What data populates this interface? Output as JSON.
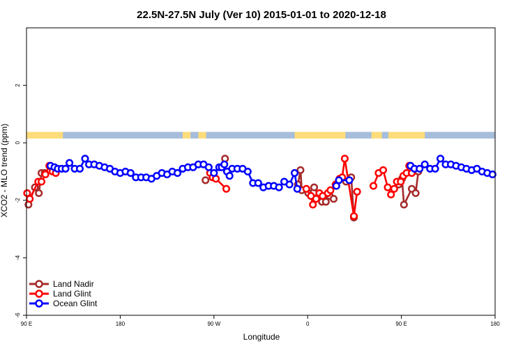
{
  "chart_data": {
    "type": "line",
    "title": "22.5N-27.5N July (Ver 10)   2015-01-01 to 2020-12-18",
    "xlabel": "Longitude",
    "ylabel": "XCO2 - MLO trend (ppm)",
    "xlim": [
      -90,
      270
    ],
    "ylim": [
      -6,
      4
    ],
    "x_ticks": [
      {
        "value": -90,
        "label": "90 E"
      },
      {
        "value": -18,
        "label": "180"
      },
      {
        "value": 54,
        "label": "90 W"
      },
      {
        "value": 126,
        "label": "0"
      },
      {
        "value": 198,
        "label": "90 E"
      },
      {
        "value": 270,
        "label": "180"
      }
    ],
    "y_ticks": [
      {
        "value": -6,
        "label": "-6"
      },
      {
        "value": -4,
        "label": "-4"
      },
      {
        "value": -2,
        "label": "-2"
      },
      {
        "value": 0,
        "label": "0"
      },
      {
        "value": 2,
        "label": "2"
      }
    ],
    "land_mask_band": {
      "y_range": [
        0.15,
        0.38
      ],
      "ocean_color": "#a6bddb",
      "land_color": "#fddc7a",
      "land_segments": [
        [
          -90,
          -62
        ],
        [
          30,
          36
        ],
        [
          42,
          48
        ],
        [
          116,
          155
        ],
        [
          175,
          183
        ],
        [
          188,
          216
        ]
      ]
    },
    "series": [
      {
        "name": "Land Nadir",
        "color": "#a52a2a",
        "points": [
          [
            -88.5,
            -2.15
          ],
          [
            -83.5,
            -1.55
          ],
          [
            -80.5,
            -1.75
          ],
          [
            -78.5,
            -1.05
          ],
          [
            -76,
            -1.05
          ],
          [
            47.5,
            -1.3
          ],
          [
            62.5,
            -0.55
          ],
          [
            118.5,
            -1.45
          ],
          [
            120.5,
            -0.95
          ],
          [
            121.5,
            -1.65
          ],
          [
            126.5,
            -1.75
          ],
          [
            131,
            -1.55
          ],
          [
            134.5,
            -1.85
          ],
          [
            137,
            -2.05
          ],
          [
            140,
            -2.05
          ],
          [
            143,
            -1.85
          ],
          [
            146,
            -1.95
          ],
          [
            155.5,
            -1.35
          ],
          [
            159.5,
            -1.2
          ],
          [
            161.5,
            -2.6
          ],
          [
            196,
            -1.45
          ],
          [
            198.5,
            -1.25
          ],
          [
            200,
            -2.15
          ],
          [
            206,
            -1.6
          ],
          [
            209,
            -1.75
          ],
          [
            211,
            -1.0
          ]
        ]
      },
      {
        "name": "Land Glint",
        "color": "#ff0000",
        "points": [
          [
            -89.5,
            -1.75
          ],
          [
            -87.5,
            -1.95
          ],
          [
            -81,
            -1.35
          ],
          [
            -78.5,
            -1.35
          ],
          [
            -75.5,
            -1.1
          ],
          [
            -72.5,
            -0.8
          ],
          [
            -70,
            -1.0
          ],
          [
            -67.5,
            -1.05
          ],
          [
            51,
            -1.05
          ],
          [
            53,
            -1.2
          ],
          [
            55.5,
            -1.25
          ],
          [
            63.5,
            -1.6
          ],
          [
            125,
            -1.6
          ],
          [
            128.5,
            -1.85
          ],
          [
            130,
            -2.15
          ],
          [
            132.5,
            -1.95
          ],
          [
            135,
            -1.75
          ],
          [
            137.5,
            -1.85
          ],
          [
            141.5,
            -1.75
          ],
          [
            143.5,
            -1.65
          ],
          [
            147.5,
            -1.45
          ],
          [
            150.5,
            -1.25
          ],
          [
            152.5,
            -1.2
          ],
          [
            154.5,
            -0.55
          ],
          [
            161.5,
            -2.55
          ],
          [
            164,
            -1.7
          ],
          [
            176.5,
            -1.5
          ],
          [
            180.5,
            -1.05
          ],
          [
            184,
            -0.95
          ],
          [
            187.5,
            -1.55
          ],
          [
            190,
            -1.8
          ],
          [
            192.5,
            -1.6
          ],
          [
            194.5,
            -1.35
          ],
          [
            197.5,
            -1.35
          ],
          [
            199.5,
            -1.15
          ],
          [
            202,
            -1.05
          ],
          [
            204,
            -0.8
          ],
          [
            206,
            -1.05
          ]
        ]
      },
      {
        "name": "Ocean Glint",
        "color": "#0000ff",
        "points": [
          [
            -71.5,
            -0.8
          ],
          [
            -68.5,
            -0.85
          ],
          [
            -66,
            -0.9
          ],
          [
            -63,
            -0.9
          ],
          [
            -60,
            -0.9
          ],
          [
            -57,
            -0.7
          ],
          [
            -53,
            -0.9
          ],
          [
            -49,
            -0.9
          ],
          [
            -45,
            -0.55
          ],
          [
            -42,
            -0.75
          ],
          [
            -38,
            -0.75
          ],
          [
            -34,
            -0.8
          ],
          [
            -30,
            -0.85
          ],
          [
            -26,
            -0.9
          ],
          [
            -22,
            -1.0
          ],
          [
            -18,
            -1.05
          ],
          [
            -14,
            -1.0
          ],
          [
            -10,
            -1.05
          ],
          [
            -6,
            -1.2
          ],
          [
            -2,
            -1.2
          ],
          [
            2,
            -1.2
          ],
          [
            6,
            -1.25
          ],
          [
            10,
            -1.15
          ],
          [
            14,
            -1.05
          ],
          [
            18,
            -1.1
          ],
          [
            22,
            -1.0
          ],
          [
            26,
            -1.05
          ],
          [
            30,
            -0.9
          ],
          [
            34,
            -0.85
          ],
          [
            38,
            -0.85
          ],
          [
            42,
            -0.75
          ],
          [
            46,
            -0.75
          ],
          [
            50,
            -0.85
          ],
          [
            54,
            -1.05
          ],
          [
            58,
            -0.85
          ],
          [
            60,
            -0.85
          ],
          [
            62,
            -0.75
          ],
          [
            64,
            -1.0
          ],
          [
            66,
            -1.15
          ],
          [
            68,
            -0.9
          ],
          [
            72,
            -0.9
          ],
          [
            76,
            -0.9
          ],
          [
            80,
            -1.0
          ],
          [
            84,
            -1.4
          ],
          [
            88,
            -1.4
          ],
          [
            92,
            -1.55
          ],
          [
            96,
            -1.5
          ],
          [
            100,
            -1.5
          ],
          [
            104,
            -1.55
          ],
          [
            108,
            -1.35
          ],
          [
            112,
            -1.45
          ],
          [
            116,
            -1.05
          ],
          [
            118,
            -1.6
          ],
          [
            148,
            -1.5
          ],
          [
            150,
            -1.3
          ],
          [
            158,
            -1.3
          ],
          [
            205,
            -0.8
          ],
          [
            208,
            -0.9
          ],
          [
            212,
            -0.9
          ],
          [
            216,
            -0.75
          ],
          [
            220,
            -0.9
          ],
          [
            224,
            -0.9
          ],
          [
            228,
            -0.55
          ],
          [
            232,
            -0.75
          ],
          [
            236,
            -0.75
          ],
          [
            240,
            -0.8
          ],
          [
            244,
            -0.85
          ],
          [
            248,
            -0.9
          ],
          [
            252,
            -0.95
          ],
          [
            256,
            -0.9
          ],
          [
            260,
            -1.0
          ],
          [
            264,
            -1.05
          ],
          [
            268,
            -1.1
          ]
        ]
      }
    ],
    "legend": {
      "position": "bottom-left",
      "entries": [
        "Land Nadir",
        "Land Glint",
        "Ocean Glint"
      ]
    }
  }
}
